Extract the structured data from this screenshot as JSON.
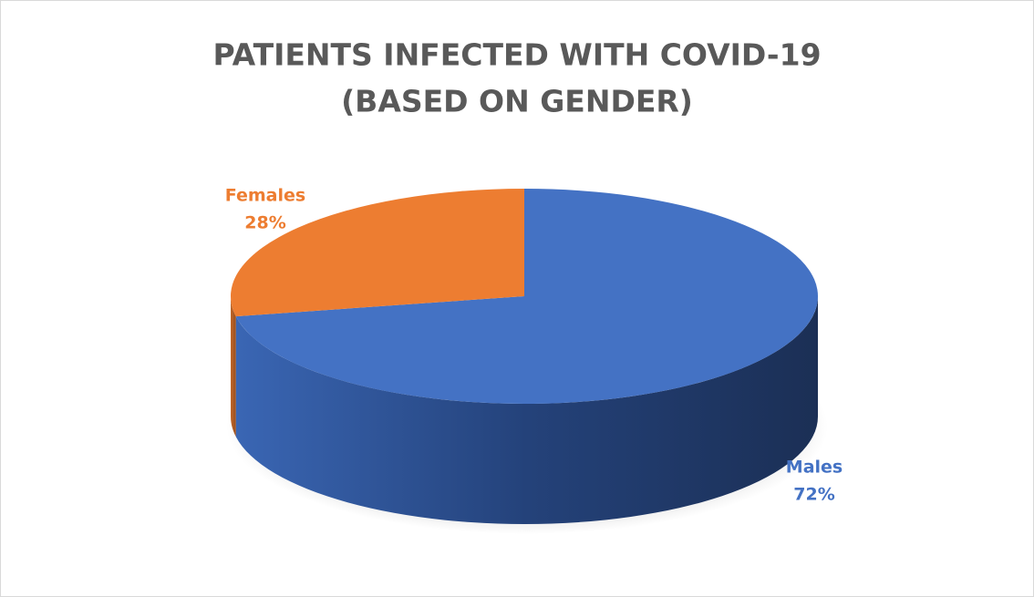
{
  "chart_data": {
    "type": "pie",
    "title": [
      "PATIENTS INFECTED WITH COVID-19",
      "(BASED ON GENDER)"
    ],
    "categories": [
      "Males",
      "Females"
    ],
    "values": [
      72,
      28
    ],
    "value_labels": [
      "72%",
      "28%"
    ],
    "colors": [
      "#4472c4",
      "#ed7d31"
    ]
  }
}
